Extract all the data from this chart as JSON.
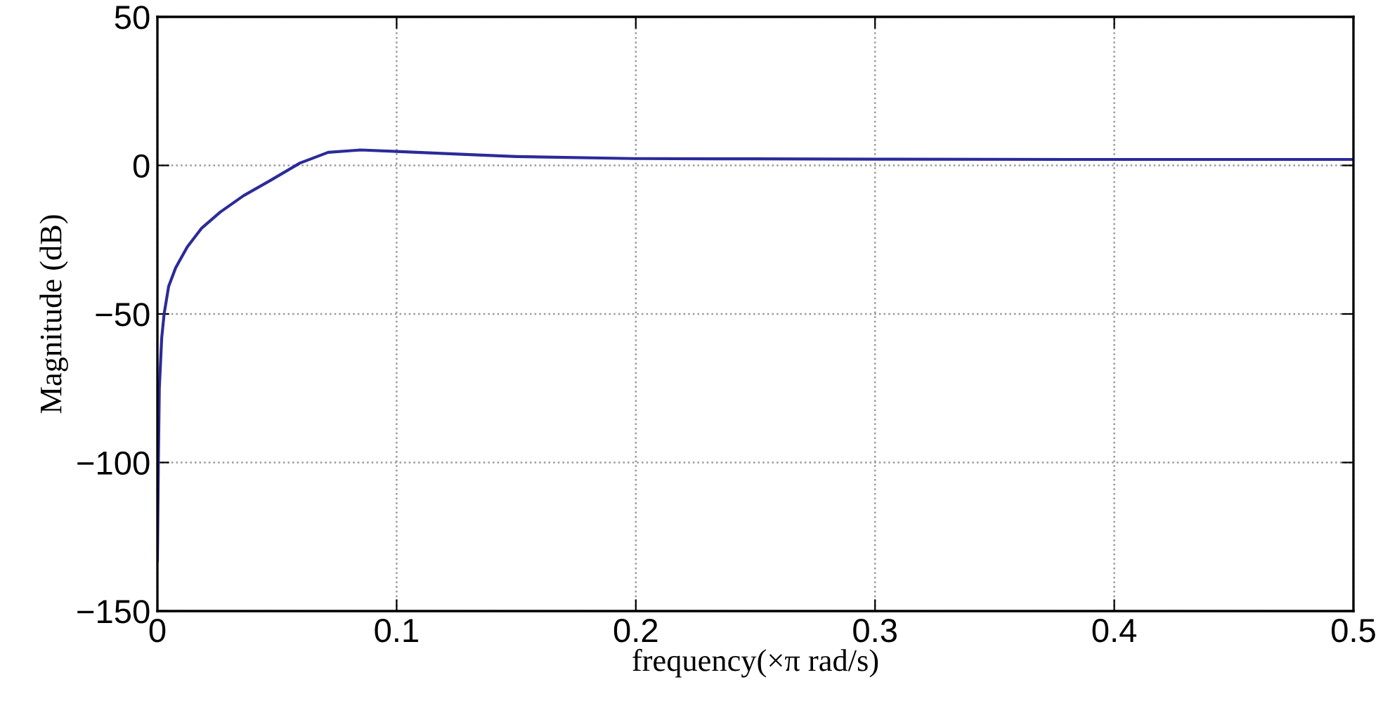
{
  "chart_data": {
    "type": "line",
    "xlabel": "frequency(×π rad/s)",
    "ylabel": "Magnitude (dB)",
    "xlim": [
      0,
      0.5
    ],
    "ylim": [
      -150,
      50
    ],
    "xticks": [
      0,
      0.1,
      0.2,
      0.3,
      0.4,
      0.5
    ],
    "yticks": [
      {
        "value": -150,
        "label": "−150"
      },
      {
        "value": -100,
        "label": "−100"
      },
      {
        "value": -50,
        "label": "−50"
      },
      0,
      50
    ],
    "grid": true,
    "marker": "none",
    "line_style": "solid",
    "series": [
      {
        "color": "#2b2b9a",
        "x": [
          0,
          0.0004,
          0.0008,
          0.0018,
          0.0028,
          0.0047,
          0.0076,
          0.0125,
          0.0184,
          0.0263,
          0.036,
          0.048,
          0.0596,
          0.0714,
          0.085,
          0.1,
          0.134,
          0.15,
          0.199,
          0.25,
          0.301,
          0.4,
          0.5
        ],
        "values": [
          -133,
          -100,
          -75,
          -58,
          -50,
          -40.7,
          -34.5,
          -27.4,
          -21.2,
          -15.7,
          -10.2,
          -4.7,
          0.8,
          4.4,
          5.2,
          4.7,
          3.5,
          3.0,
          2.3,
          2.2,
          2.1,
          2.0,
          2.0
        ]
      }
    ]
  }
}
